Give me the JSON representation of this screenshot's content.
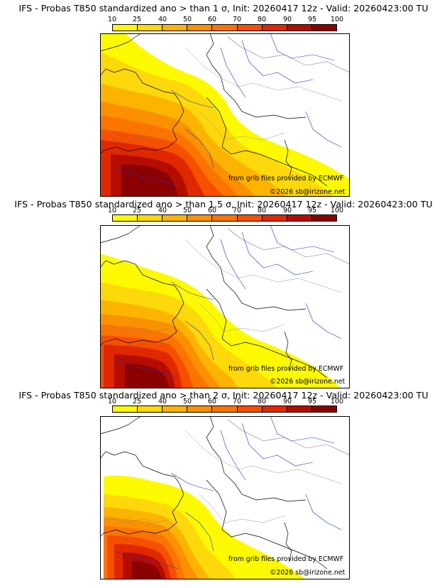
{
  "colorbar": {
    "ticks": [
      "10",
      "25",
      "40",
      "50",
      "60",
      "70",
      "80",
      "90",
      "95",
      "100"
    ],
    "colors": [
      "#fdfa00",
      "#fdd80a",
      "#fdb400",
      "#fb9000",
      "#fb7400",
      "#f64f00",
      "#e02800",
      "#b50c00",
      "#8b0000"
    ]
  },
  "panels": [
    {
      "title": "IFS - Probas T850  standardized ano > than 1 σ, Init: 20260417 12z - Valid: 20260423:00 TU",
      "credit": "from grib files provided by ECMWF",
      "copyright": "©2026 sb@irizone.net"
    },
    {
      "title": "IFS - Probas T850  standardized ano > than 1.5 σ, Init: 20260417 12z - Valid: 20260423:00 TU",
      "credit": "from grib files provided by ECMWF",
      "copyright": "©2026 sb@irizone.net"
    },
    {
      "title": "IFS - Probas T850  standardized ano > than 2 σ, Init: 20260417 12z - Valid: 20260423:00 TU",
      "credit": "from grib files provided by ECMWF",
      "copyright": "©2026 sb@irizone.net"
    }
  ]
}
